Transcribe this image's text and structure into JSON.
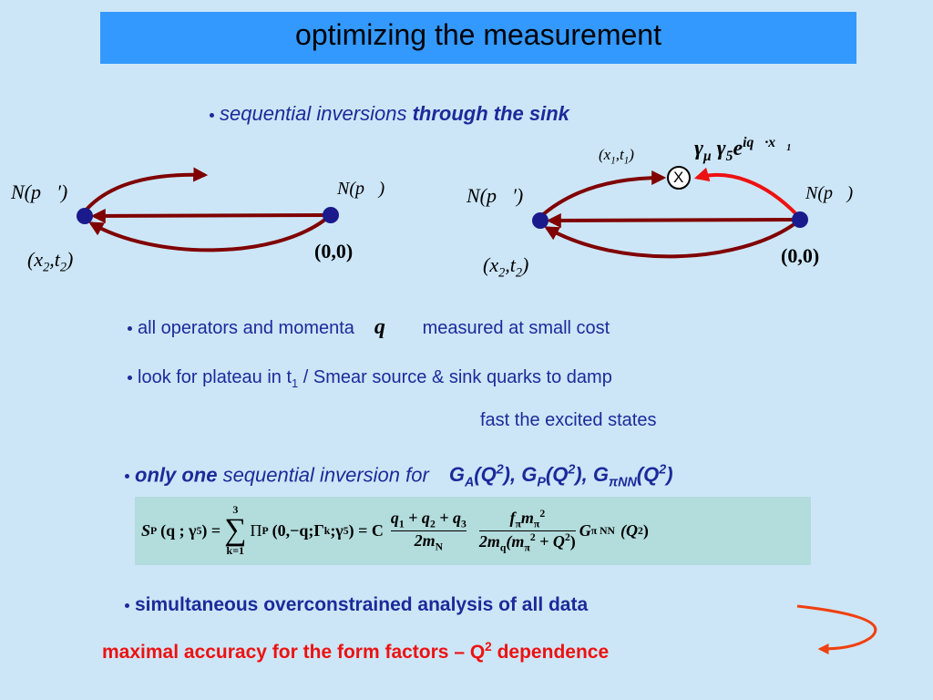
{
  "title": "optimizing the measurement",
  "intro": {
    "text": "sequential inversions ",
    "bold": "through the sink"
  },
  "diagram_left": {
    "left_node": "N(p⃗′)",
    "right_node": "N(p⃗)",
    "left_pos": [
      "(x",
      "2",
      ",t",
      "2",
      ")"
    ],
    "right_pos": "(0,0)"
  },
  "diagram_right": {
    "left_node": "N(p⃗′)",
    "right_node": "N(p⃗)",
    "left_pos": [
      "(x",
      "2",
      ",t",
      "2",
      ")"
    ],
    "right_pos": "(0,0)",
    "insertion_pos": [
      "(x",
      "1",
      ",t",
      "1",
      ")"
    ],
    "insertion_op": [
      "γ",
      "μ",
      " γ",
      "5",
      "e",
      "iq⃗·x⃗",
      "1"
    ],
    "insertion_mark": "X"
  },
  "operators": [
    "all operators  and momenta",
    "q⃗",
    "measured at small cost"
  ],
  "plateau": [
    "look for plateau in  t",
    "1",
    " /  Smear source & sink quarks to damp",
    "fast the excited states"
  ],
  "only_one": [
    "only one",
    " sequential inversion for",
    "G",
    "A",
    "(Q",
    "2",
    "), G",
    "P",
    "(Q",
    "2",
    "), G",
    "πNN",
    "(Q",
    "2",
    ")"
  ],
  "formula": {
    "lhs": [
      "S",
      "P",
      "(q ; γ",
      "5",
      ") ="
    ],
    "sum": [
      "3",
      "∑",
      "k=1"
    ],
    "term": [
      "Π",
      "P",
      "(0,−q;Γ",
      "k",
      ";γ",
      "5",
      ") = C"
    ],
    "frac1": [
      "q",
      "1",
      " + q",
      "2",
      " + q",
      "3",
      "2m",
      "N"
    ],
    "frac2": [
      "f",
      "π",
      "m",
      "π",
      "2",
      "2m",
      "q",
      "(m",
      "π",
      "2",
      " + Q",
      "2",
      ")"
    ],
    "tail": [
      "G",
      "π NN",
      "(Q",
      "2",
      ")"
    ]
  },
  "simultaneous": "simultaneous overconstrained analysis of all data",
  "conclusion": [
    "maximal accuracy for the form factors – Q",
    "2",
    " dependence"
  ]
}
